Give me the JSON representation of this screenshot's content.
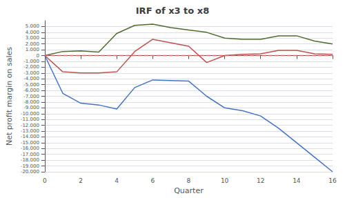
{
  "chart_data": {
    "type": "line",
    "title": "IRF of x3 to x8",
    "xlabel": "Quarter",
    "ylabel": "Net profit margin on sales",
    "x": [
      0,
      1,
      2,
      3,
      4,
      5,
      6,
      7,
      8,
      9,
      10,
      11,
      12,
      13,
      14,
      15,
      16
    ],
    "series": [
      {
        "color": "#4e6b2e",
        "values": [
          0,
          700,
          800,
          600,
          3800,
          5200,
          5400,
          4800,
          4400,
          4000,
          3000,
          2800,
          2800,
          3400,
          3400,
          2500,
          2000
        ]
      },
      {
        "color": "#c0504d",
        "values": [
          0,
          -2800,
          -3000,
          -3000,
          -2800,
          700,
          2800,
          2200,
          1600,
          -1200,
          0,
          200,
          300,
          900,
          900,
          300,
          200
        ]
      },
      {
        "color": "#4472c4",
        "values": [
          0,
          -6500,
          -8200,
          -8500,
          -9200,
          -5500,
          -4200,
          -4300,
          -4400,
          -7000,
          -9000,
          -9500,
          -10400,
          -12500,
          -15000,
          -17500,
          -20000
        ]
      },
      {
        "color": "#e06666",
        "line_style": "dashed",
        "values": [
          0,
          0,
          0,
          0,
          0,
          0,
          0,
          0,
          0,
          0,
          0,
          0,
          0,
          0,
          0,
          0,
          0
        ]
      }
    ],
    "xlim": [
      0,
      16
    ],
    "xticks": [
      0,
      2,
      4,
      6,
      8,
      10,
      12,
      14,
      16
    ],
    "ylim": [
      -20000,
      6000
    ],
    "yticks": [
      {
        "value": 5000,
        "label": "5.000"
      },
      {
        "value": 4000,
        "label": "4.000"
      },
      {
        "value": 3000,
        "label": "3.000"
      },
      {
        "value": 2000,
        "label": "2.000"
      },
      {
        "value": 1000,
        "label": "1.000"
      },
      0,
      {
        "value": -1000,
        "label": "-1.000"
      },
      {
        "value": -2000,
        "label": "-2.000"
      },
      {
        "value": -3000,
        "label": "-3.000"
      },
      {
        "value": -4000,
        "label": "-4.000"
      },
      {
        "value": -5000,
        "label": "-5.000"
      },
      {
        "value": -6000,
        "label": "-6.000"
      },
      {
        "value": -7000,
        "label": "-7.000"
      },
      {
        "value": -8000,
        "label": "-8.000"
      },
      {
        "value": -9000,
        "label": "-9.000"
      },
      {
        "value": -10000,
        "label": "-10.000"
      },
      {
        "value": -11000,
        "label": "-11.000"
      },
      {
        "value": -12000,
        "label": "-12.000"
      },
      {
        "value": -13000,
        "label": "-13.000"
      },
      {
        "value": -14000,
        "label": "-14.000"
      },
      {
        "value": -15000,
        "label": "-15.000"
      },
      {
        "value": -16000,
        "label": "-16.000"
      },
      {
        "value": -17000,
        "label": "-17.000"
      },
      {
        "value": -18000,
        "label": "-18.000"
      },
      {
        "value": -19000,
        "label": "-19.000"
      },
      {
        "value": -20000,
        "label": "-20.000"
      }
    ],
    "grid": true
  }
}
